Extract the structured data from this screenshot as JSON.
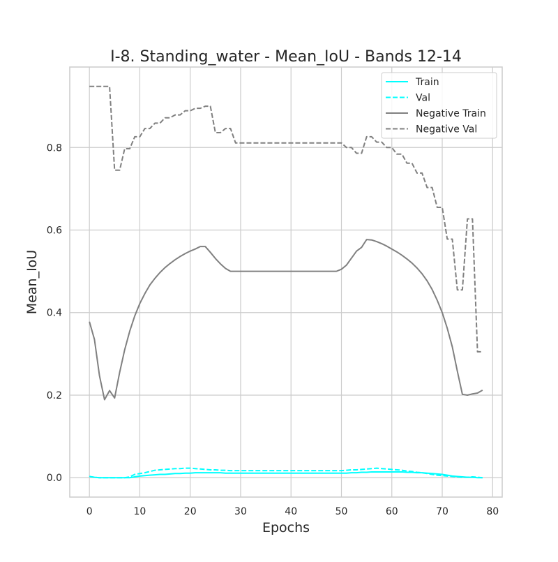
{
  "chart_data": {
    "type": "line",
    "title": "I-8. Standing_water - Mean_IoU - Bands 12-14",
    "xlabel": "Epochs",
    "ylabel": "Mean_IoU",
    "xlim": [
      -3.9,
      81.9
    ],
    "ylim": [
      -0.047,
      0.995
    ],
    "xticks": [
      0,
      10,
      20,
      30,
      40,
      50,
      60,
      70,
      80
    ],
    "xtick_labels": [
      "0",
      "10",
      "20",
      "30",
      "40",
      "50",
      "60",
      "70",
      "80"
    ],
    "yticks": [
      0.0,
      0.2,
      0.4,
      0.6,
      0.8
    ],
    "ytick_labels": [
      "0.0",
      "0.2",
      "0.4",
      "0.6",
      "0.8"
    ],
    "grid": true,
    "legend_position": "top-right",
    "series": [
      {
        "name": "Train",
        "color": "#00ffff",
        "dash": "solid",
        "x": [
          0,
          1,
          2,
          3,
          4,
          5,
          6,
          7,
          8,
          9,
          10,
          11,
          12,
          13,
          14,
          15,
          16,
          17,
          18,
          19,
          20,
          21,
          22,
          23,
          24,
          25,
          26,
          27,
          28,
          29,
          30,
          31,
          32,
          33,
          34,
          35,
          36,
          37,
          38,
          39,
          40,
          41,
          42,
          43,
          44,
          45,
          46,
          47,
          48,
          49,
          50,
          51,
          52,
          53,
          54,
          55,
          56,
          57,
          58,
          59,
          60,
          61,
          62,
          63,
          64,
          65,
          66,
          67,
          68,
          69,
          70,
          71,
          72,
          73,
          74,
          75,
          76,
          77,
          78
        ],
        "y": [
          0.003,
          0.001,
          0.0,
          0.0,
          0.0,
          0.0,
          0.0,
          0.0,
          0.0,
          0.002,
          0.004,
          0.005,
          0.006,
          0.007,
          0.008,
          0.008,
          0.009,
          0.01,
          0.01,
          0.011,
          0.011,
          0.012,
          0.012,
          0.012,
          0.012,
          0.012,
          0.012,
          0.011,
          0.011,
          0.011,
          0.011,
          0.011,
          0.011,
          0.011,
          0.011,
          0.011,
          0.011,
          0.011,
          0.011,
          0.011,
          0.011,
          0.011,
          0.011,
          0.011,
          0.011,
          0.011,
          0.011,
          0.011,
          0.011,
          0.011,
          0.011,
          0.011,
          0.012,
          0.012,
          0.013,
          0.013,
          0.014,
          0.014,
          0.014,
          0.014,
          0.014,
          0.014,
          0.014,
          0.013,
          0.013,
          0.012,
          0.012,
          0.011,
          0.01,
          0.009,
          0.008,
          0.006,
          0.004,
          0.003,
          0.002,
          0.001,
          0.001,
          0.0,
          0.0
        ]
      },
      {
        "name": "Val",
        "color": "#00ffff",
        "dash": "dashed",
        "x": [
          0,
          1,
          2,
          3,
          4,
          5,
          6,
          7,
          8,
          9,
          10,
          11,
          12,
          13,
          14,
          15,
          16,
          17,
          18,
          19,
          20,
          21,
          22,
          23,
          24,
          25,
          26,
          27,
          28,
          29,
          30,
          31,
          32,
          33,
          34,
          35,
          36,
          37,
          38,
          39,
          40,
          41,
          42,
          43,
          44,
          45,
          46,
          47,
          48,
          49,
          50,
          51,
          52,
          53,
          54,
          55,
          56,
          57,
          58,
          59,
          60,
          61,
          62,
          63,
          64,
          65,
          66,
          67,
          68,
          69,
          70,
          71,
          72,
          73,
          74,
          75,
          76,
          77,
          78
        ],
        "y": [
          0.003,
          0.001,
          0.0,
          0.0,
          0.0,
          0.0,
          0.0,
          0.0,
          0.002,
          0.008,
          0.01,
          0.012,
          0.015,
          0.018,
          0.019,
          0.02,
          0.021,
          0.022,
          0.022,
          0.023,
          0.023,
          0.022,
          0.021,
          0.02,
          0.019,
          0.019,
          0.018,
          0.018,
          0.017,
          0.017,
          0.017,
          0.017,
          0.017,
          0.017,
          0.017,
          0.017,
          0.017,
          0.017,
          0.017,
          0.017,
          0.017,
          0.017,
          0.017,
          0.017,
          0.017,
          0.017,
          0.017,
          0.017,
          0.017,
          0.017,
          0.017,
          0.018,
          0.019,
          0.019,
          0.02,
          0.021,
          0.022,
          0.023,
          0.022,
          0.021,
          0.02,
          0.019,
          0.018,
          0.016,
          0.015,
          0.013,
          0.012,
          0.01,
          0.008,
          0.006,
          0.005,
          0.004,
          0.003,
          0.002,
          0.001,
          0.001,
          0.002,
          0.001,
          0.0
        ]
      },
      {
        "name": "Negative Train",
        "color": "#808080",
        "dash": "solid",
        "x": [
          0,
          1,
          2,
          3,
          4,
          5,
          6,
          7,
          8,
          9,
          10,
          11,
          12,
          13,
          14,
          15,
          16,
          17,
          18,
          19,
          20,
          21,
          22,
          23,
          24,
          25,
          26,
          27,
          28,
          29,
          30,
          31,
          32,
          33,
          34,
          35,
          36,
          37,
          38,
          39,
          40,
          41,
          42,
          43,
          44,
          45,
          46,
          47,
          48,
          49,
          50,
          51,
          52,
          53,
          54,
          55,
          56,
          57,
          58,
          59,
          60,
          61,
          62,
          63,
          64,
          65,
          66,
          67,
          68,
          69,
          70,
          71,
          72,
          73,
          74,
          75,
          76,
          77,
          78
        ],
        "y": [
          0.378,
          0.335,
          0.247,
          0.189,
          0.211,
          0.193,
          0.255,
          0.31,
          0.355,
          0.392,
          0.422,
          0.446,
          0.467,
          0.483,
          0.497,
          0.509,
          0.519,
          0.528,
          0.536,
          0.543,
          0.549,
          0.554,
          0.56,
          0.56,
          0.546,
          0.531,
          0.518,
          0.507,
          0.5,
          0.5,
          0.5,
          0.5,
          0.5,
          0.5,
          0.5,
          0.5,
          0.5,
          0.5,
          0.5,
          0.5,
          0.5,
          0.5,
          0.5,
          0.5,
          0.5,
          0.5,
          0.5,
          0.5,
          0.5,
          0.5,
          0.505,
          0.515,
          0.532,
          0.549,
          0.558,
          0.577,
          0.576,
          0.572,
          0.567,
          0.561,
          0.554,
          0.547,
          0.539,
          0.53,
          0.52,
          0.508,
          0.494,
          0.477,
          0.456,
          0.43,
          0.4,
          0.362,
          0.317,
          0.258,
          0.202,
          0.2,
          0.203,
          0.205,
          0.212
        ]
      },
      {
        "name": "Negative Val",
        "color": "#808080",
        "dash": "dashed",
        "x": [
          0,
          1,
          2,
          3,
          4,
          5,
          6,
          7,
          8,
          9,
          10,
          11,
          12,
          13,
          14,
          15,
          16,
          17,
          18,
          19,
          20,
          21,
          22,
          23,
          24,
          25,
          26,
          27,
          28,
          29,
          30,
          31,
          32,
          33,
          34,
          35,
          36,
          37,
          38,
          39,
          40,
          41,
          42,
          43,
          44,
          45,
          46,
          47,
          48,
          49,
          50,
          51,
          52,
          53,
          54,
          55,
          56,
          57,
          58,
          59,
          60,
          61,
          62,
          63,
          64,
          65,
          66,
          67,
          68,
          69,
          70,
          71,
          72,
          73,
          74,
          75,
          76,
          77,
          78
        ],
        "y": [
          0.948,
          0.948,
          0.948,
          0.948,
          0.948,
          0.745,
          0.745,
          0.797,
          0.797,
          0.826,
          0.826,
          0.846,
          0.846,
          0.859,
          0.859,
          0.872,
          0.872,
          0.879,
          0.879,
          0.889,
          0.889,
          0.895,
          0.895,
          0.9,
          0.9,
          0.836,
          0.836,
          0.846,
          0.846,
          0.811,
          0.811,
          0.811,
          0.811,
          0.811,
          0.811,
          0.811,
          0.811,
          0.811,
          0.811,
          0.811,
          0.811,
          0.811,
          0.811,
          0.811,
          0.811,
          0.811,
          0.811,
          0.811,
          0.811,
          0.811,
          0.811,
          0.8,
          0.8,
          0.786,
          0.786,
          0.826,
          0.826,
          0.813,
          0.813,
          0.8,
          0.8,
          0.784,
          0.784,
          0.762,
          0.762,
          0.738,
          0.738,
          0.703,
          0.703,
          0.655,
          0.655,
          0.578,
          0.578,
          0.455,
          0.455,
          0.627,
          0.627,
          0.305,
          0.305
        ]
      }
    ]
  }
}
